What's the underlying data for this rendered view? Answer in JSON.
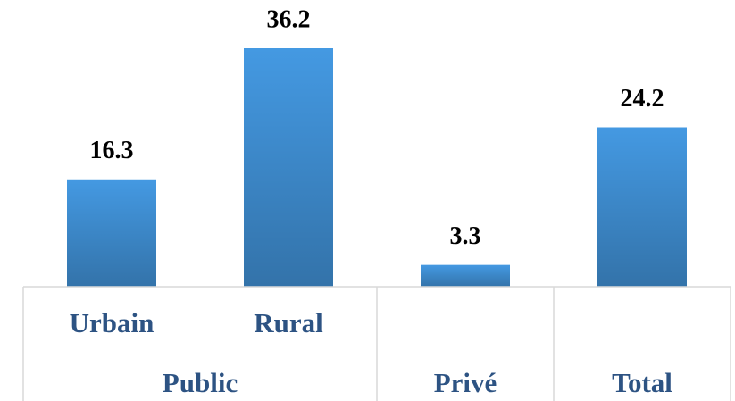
{
  "chart_data": {
    "type": "bar",
    "categories": [
      "Urbain",
      "Rural",
      null,
      null
    ],
    "groups": [
      "Public",
      "Public",
      "Privé",
      "Total"
    ],
    "values": [
      16.3,
      36.2,
      3.3,
      24.2
    ],
    "color": "#4499e2"
  }
}
